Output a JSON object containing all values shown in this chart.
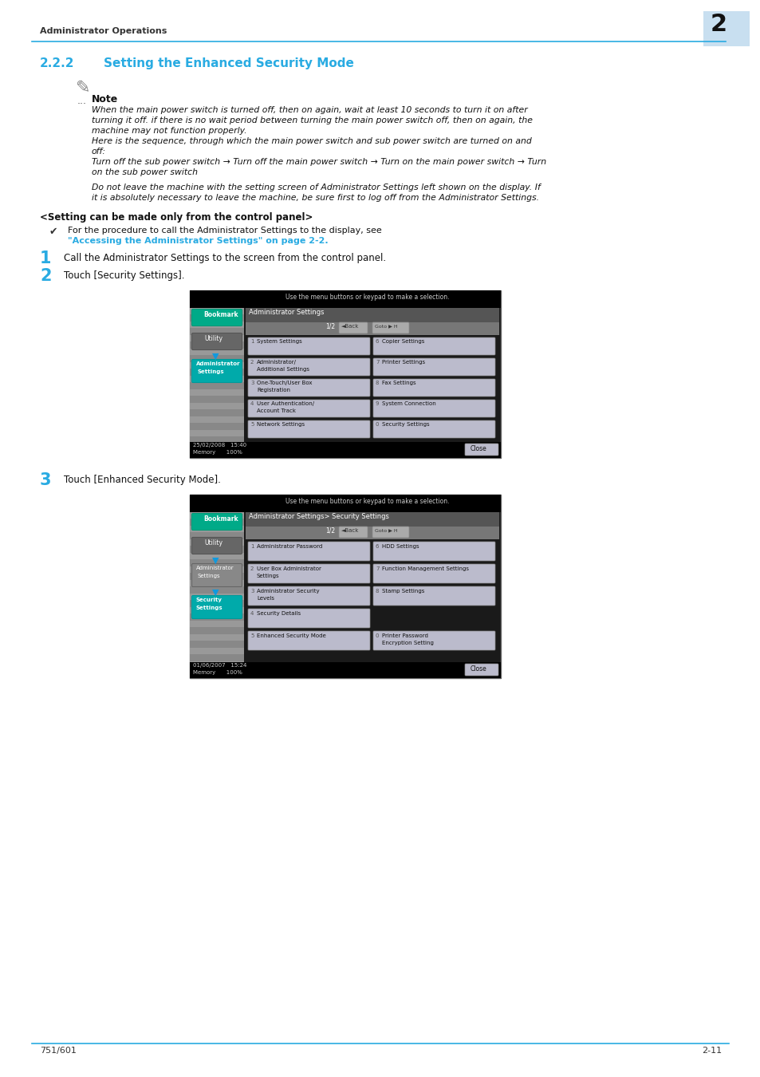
{
  "page_bg": "#ffffff",
  "header_text": "Administrator Operations",
  "header_line_color": "#29abe2",
  "header_num": "2",
  "header_num_bg": "#c8dff0",
  "section_num": "2.2.2",
  "section_title": "Setting the Enhanced Security Mode",
  "section_color": "#29abe2",
  "note_label": "Note",
  "note_italic_lines": [
    "When the main power switch is turned off, then on again, wait at least 10 seconds to turn it on after",
    "turning it off. if there is no wait period between turning the main power switch off, then on again, the",
    "machine may not function properly.",
    "Here is the sequence, through which the main power switch and sub power switch are turned on and",
    "off:",
    "Turn off the sub power switch → Turn off the main power switch → Turn on the main power switch → Turn",
    "on the sub power switch"
  ],
  "note_italic2": [
    "Do not leave the machine with the setting screen of Administrator Settings left shown on the display. If",
    "it is absolutely necessary to leave the machine, be sure first to log off from the Administrator Settings."
  ],
  "setting_panel_text": "<Setting can be made only from the control panel>",
  "check_pre": "For the procedure to call the Administrator Settings to the display, see ",
  "check_link": "\"Accessing the Administrator Settings\" on page 2-2.",
  "step1_num": "1",
  "step1_text": "Call the Administrator Settings to the screen from the control panel.",
  "step2_num": "2",
  "step2_text": "Touch [Security Settings].",
  "step3_num": "3",
  "step3_text": "Touch [Enhanced Security Mode].",
  "footer_left": "751/601",
  "footer_right": "2-11",
  "footer_line_color": "#29abe2",
  "cyan": "#29abe2",
  "screen1_btn_labels": [
    [
      "1",
      "System Settings",
      "6",
      "Copier Settings"
    ],
    [
      "2",
      "Administrator/\nAdditional Settings",
      "7",
      "Printer Settings"
    ],
    [
      "3",
      "One-Touch/User Box\nRegistration",
      "8",
      "Fax Settings"
    ],
    [
      "4",
      "User Authentication/\nAccount Track",
      "9",
      "System Connection"
    ],
    [
      "5",
      "Network Settings",
      "0",
      "Security Settings"
    ]
  ],
  "screen2_btn_labels": [
    [
      "1",
      "Administrator Password",
      "6",
      "HDD Settings"
    ],
    [
      "2",
      "User Box Administrator\nSettings",
      "7",
      "Function Management Settings"
    ],
    [
      "3",
      "Administrator Security\nLevels",
      "8",
      "Stamp Settings"
    ],
    [
      "4",
      "Security Details",
      "",
      ""
    ],
    [
      "5",
      "Enhanced Security Mode",
      "0",
      "Printer Password\nEncryption Setting"
    ]
  ]
}
